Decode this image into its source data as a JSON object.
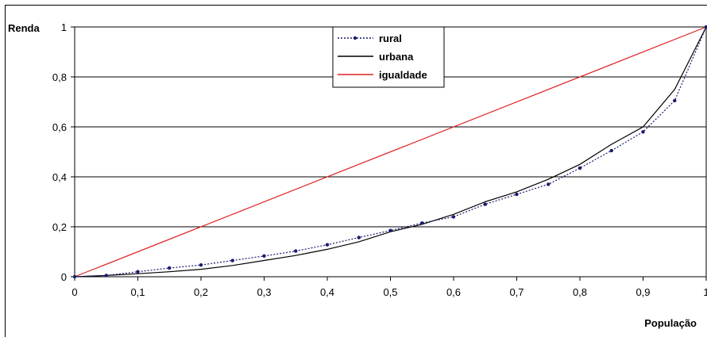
{
  "chart_data": {
    "type": "line",
    "xlabel": "População",
    "ylabel": "Renda",
    "xlim": [
      0,
      1
    ],
    "ylim": [
      0,
      1
    ],
    "x_ticks": [
      "0",
      "0,1",
      "0,2",
      "0,3",
      "0,4",
      "0,5",
      "0,6",
      "0,7",
      "0,8",
      "0,9",
      "1"
    ],
    "y_ticks": [
      "0",
      "0,2",
      "0,4",
      "0,6",
      "0,8",
      "1"
    ],
    "grid": true,
    "legend_position": "top-center",
    "series": [
      {
        "name": "rural",
        "color": "#1a1a6e",
        "style": "dotted-markers",
        "x": [
          0,
          0.05,
          0.1,
          0.15,
          0.2,
          0.25,
          0.3,
          0.35,
          0.4,
          0.45,
          0.5,
          0.55,
          0.6,
          0.65,
          0.7,
          0.75,
          0.8,
          0.85,
          0.9,
          0.95,
          1
        ],
        "y": [
          0,
          0.005,
          0.02,
          0.035,
          0.047,
          0.065,
          0.083,
          0.103,
          0.128,
          0.157,
          0.185,
          0.215,
          0.24,
          0.29,
          0.33,
          0.37,
          0.435,
          0.505,
          0.58,
          0.705,
          1
        ]
      },
      {
        "name": "urbana",
        "color": "#000000",
        "style": "solid",
        "x": [
          0,
          0.05,
          0.1,
          0.15,
          0.2,
          0.25,
          0.3,
          0.35,
          0.4,
          0.45,
          0.5,
          0.55,
          0.6,
          0.65,
          0.7,
          0.75,
          0.8,
          0.85,
          0.9,
          0.95,
          1
        ],
        "y": [
          0,
          0.005,
          0.012,
          0.02,
          0.03,
          0.045,
          0.065,
          0.085,
          0.11,
          0.14,
          0.18,
          0.21,
          0.25,
          0.3,
          0.34,
          0.39,
          0.45,
          0.53,
          0.6,
          0.75,
          1
        ]
      },
      {
        "name": "igualdade",
        "color": "#e02020",
        "style": "solid",
        "x": [
          0,
          1
        ],
        "y": [
          0,
          1
        ]
      }
    ]
  }
}
